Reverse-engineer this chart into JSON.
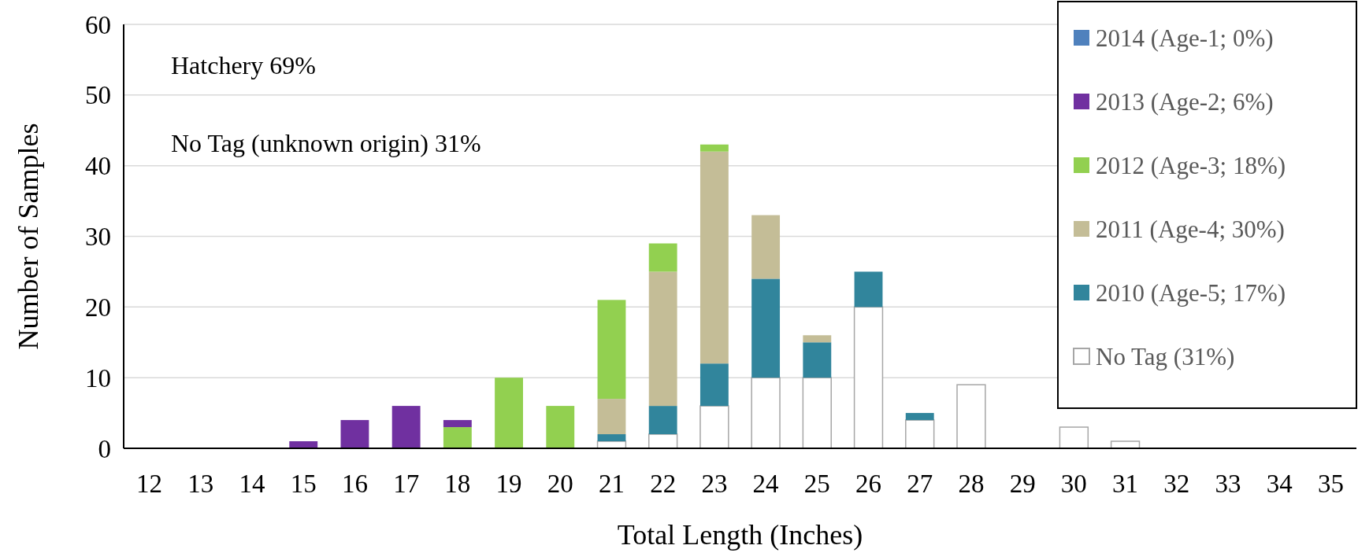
{
  "chart_data": {
    "type": "bar",
    "stacked": true,
    "xlabel": "Total Length (Inches)",
    "ylabel": "Number of Samples",
    "categories": [
      "12",
      "13",
      "14",
      "15",
      "16",
      "17",
      "18",
      "19",
      "20",
      "21",
      "22",
      "23",
      "24",
      "25",
      "26",
      "27",
      "28",
      "29",
      "30",
      "31",
      "32",
      "33",
      "34",
      "35"
    ],
    "ylim": [
      0,
      60
    ],
    "yticks": [
      0,
      10,
      20,
      30,
      40,
      50,
      60
    ],
    "grid": "y",
    "legend": "top right",
    "annotations": [
      "Hatchery 69%",
      "No Tag (unknown origin) 31%"
    ],
    "series": [
      {
        "name": "No Tag (31%)",
        "color": "#ffffff",
        "values": [
          0,
          0,
          0,
          0,
          0,
          0,
          0,
          0,
          0,
          1,
          2,
          6,
          10,
          10,
          20,
          4,
          9,
          0,
          3,
          1,
          0,
          0,
          0,
          0
        ]
      },
      {
        "name": "2010 (Age-5; 17%)",
        "color": "#31859c",
        "values": [
          0,
          0,
          0,
          0,
          0,
          0,
          0,
          0,
          0,
          1,
          4,
          6,
          14,
          5,
          5,
          1,
          0,
          0,
          0,
          0,
          0,
          0,
          0,
          0
        ]
      },
      {
        "name": "2011 (Age-4; 30%)",
        "color": "#c4bd97",
        "values": [
          0,
          0,
          0,
          0,
          0,
          0,
          0,
          0,
          0,
          5,
          19,
          30,
          9,
          1,
          0,
          0,
          0,
          0,
          0,
          0,
          0,
          0,
          0,
          0
        ]
      },
      {
        "name": "2012 (Age-3; 18%)",
        "color": "#92d050",
        "values": [
          0,
          0,
          0,
          0,
          0,
          0,
          3,
          10,
          6,
          14,
          4,
          1,
          0,
          0,
          0,
          0,
          0,
          0,
          0,
          0,
          0,
          0,
          0,
          0
        ]
      },
      {
        "name": "2013 (Age-2; 6%)",
        "color": "#7030a0",
        "values": [
          0,
          0,
          0,
          1,
          4,
          6,
          1,
          0,
          0,
          0,
          0,
          0,
          0,
          0,
          0,
          0,
          0,
          0,
          0,
          0,
          0,
          0,
          0,
          0
        ]
      },
      {
        "name": "2014 (Age-1; 0%)",
        "color": "#4f81bd",
        "values": [
          0,
          0,
          0,
          0,
          0,
          0,
          0,
          0,
          0,
          0,
          0,
          0,
          0,
          0,
          0,
          0,
          0,
          0,
          0,
          0,
          0,
          0,
          0,
          0
        ]
      }
    ]
  }
}
